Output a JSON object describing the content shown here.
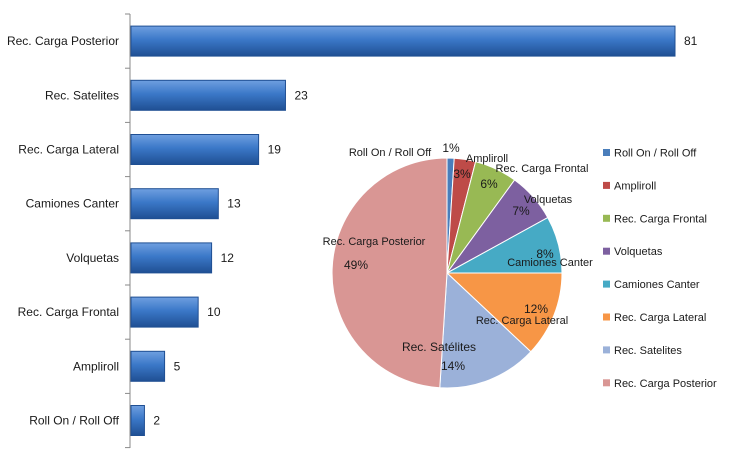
{
  "chart_data": [
    {
      "type": "bar",
      "orientation": "horizontal",
      "categories": [
        "Rec. Carga Posterior",
        "Rec. Satelites",
        "Rec. Carga Lateral",
        "Camiones Canter",
        "Volquetas",
        "Rec. Carga Frontal",
        "Ampliroll",
        "Roll On / Roll Off"
      ],
      "values": [
        81,
        23,
        19,
        13,
        12,
        10,
        5,
        2
      ],
      "data_labels": [
        "81",
        "23",
        "19",
        "13",
        "12",
        "10",
        "5",
        "2"
      ],
      "xlim": [
        0,
        81
      ],
      "grid": false,
      "bar_color": "#3b78c8",
      "bar_color_light": "#6f9fe0",
      "bar_color_dark": "#1f4f93"
    },
    {
      "type": "pie",
      "labels": [
        "Roll On / Roll Off",
        "Ampliroll",
        "Rec. Carga Frontal",
        "Volquetas",
        "Camiones Canter",
        "Rec. Carga Lateral",
        "Rec. Satelites",
        "Rec. Carga Posterior"
      ],
      "slice_labels": [
        "Roll On / Roll Off",
        "Ampliroll",
        "Rec. Carga Frontal",
        "Volquetas",
        "Camiones Canter",
        "Rec. Carga Lateral",
        "Rec. Satélites",
        "Rec. Carga Posterior"
      ],
      "values": [
        1,
        3,
        6,
        7,
        8,
        12,
        14,
        49
      ],
      "percent_labels": [
        "1%",
        "3%",
        "6%",
        "7%",
        "8%",
        "12%",
        "14%",
        "49%"
      ],
      "colors": [
        "#4a7ebb",
        "#be4b48",
        "#98b954",
        "#7d60a0",
        "#46aac5",
        "#f79646",
        "#9bb1d9",
        "#d99694"
      ],
      "legend_position": "right"
    }
  ]
}
